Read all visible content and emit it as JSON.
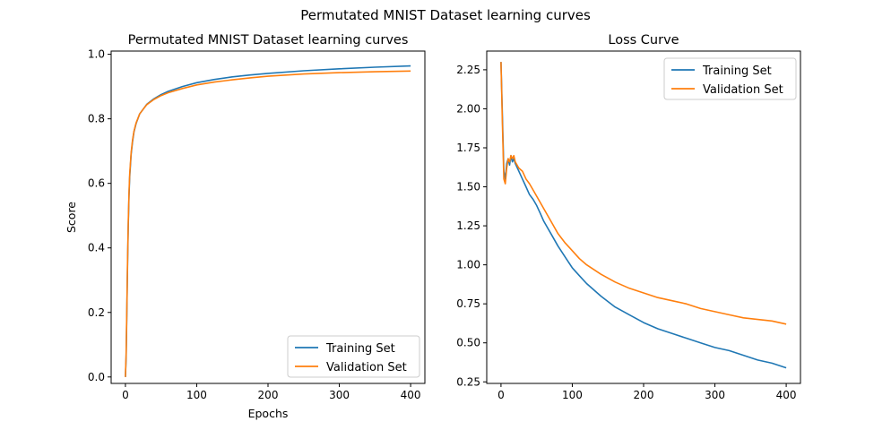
{
  "figure": {
    "suptitle": "Permutated MNIST Dataset learning curves"
  },
  "colors": {
    "training": "#1f77b4",
    "validation": "#ff7f0e",
    "axes": "#000000",
    "background": "#ffffff"
  },
  "chart_data": [
    {
      "type": "line",
      "title": "Permutated MNIST Dataset learning curves",
      "xlabel": "Epochs",
      "ylabel": "Score",
      "xlim": [
        -20,
        420
      ],
      "ylim": [
        -0.02,
        1.01
      ],
      "xticks": [
        0,
        100,
        200,
        300,
        400
      ],
      "xtick_labels": [
        "0",
        "100",
        "200",
        "300",
        "400"
      ],
      "yticks": [
        0.0,
        0.2,
        0.4,
        0.6,
        0.8,
        1.0
      ],
      "ytick_labels": [
        "0.0",
        "0.2",
        "0.4",
        "0.6",
        "0.8",
        "1.0"
      ],
      "grid": false,
      "legend": "lower-right",
      "series": [
        {
          "name": "Training Set",
          "color": "#1f77b4",
          "x": [
            0,
            1,
            2,
            3,
            4,
            5,
            6,
            8,
            10,
            12,
            15,
            20,
            25,
            30,
            40,
            50,
            60,
            80,
            100,
            125,
            150,
            175,
            200,
            250,
            300,
            350,
            400
          ],
          "y": [
            0.0,
            0.06,
            0.2,
            0.35,
            0.47,
            0.56,
            0.62,
            0.69,
            0.73,
            0.76,
            0.785,
            0.815,
            0.83,
            0.845,
            0.862,
            0.875,
            0.885,
            0.9,
            0.912,
            0.922,
            0.93,
            0.936,
            0.941,
            0.949,
            0.955,
            0.96,
            0.964
          ]
        },
        {
          "name": "Validation Set",
          "color": "#ff7f0e",
          "x": [
            0,
            1,
            2,
            3,
            4,
            5,
            6,
            8,
            10,
            12,
            15,
            20,
            25,
            30,
            40,
            50,
            60,
            80,
            100,
            125,
            150,
            175,
            200,
            250,
            300,
            350,
            400
          ],
          "y": [
            0.0,
            0.07,
            0.21,
            0.36,
            0.48,
            0.57,
            0.63,
            0.695,
            0.735,
            0.762,
            0.787,
            0.815,
            0.83,
            0.844,
            0.86,
            0.872,
            0.881,
            0.894,
            0.905,
            0.914,
            0.921,
            0.927,
            0.932,
            0.939,
            0.943,
            0.946,
            0.948
          ]
        }
      ]
    },
    {
      "type": "line",
      "title": "Loss Curve",
      "xlabel": "",
      "ylabel": "",
      "xlim": [
        -20,
        420
      ],
      "ylim": [
        0.24,
        2.37
      ],
      "xticks": [
        0,
        100,
        200,
        300,
        400
      ],
      "xtick_labels": [
        "0",
        "100",
        "200",
        "300",
        "400"
      ],
      "yticks": [
        0.25,
        0.5,
        0.75,
        1.0,
        1.25,
        1.5,
        1.75,
        2.0,
        2.25
      ],
      "ytick_labels": [
        "0.25",
        "0.50",
        "0.75",
        "1.00",
        "1.25",
        "1.50",
        "1.75",
        "2.00",
        "2.25"
      ],
      "grid": false,
      "legend": "upper-right",
      "series": [
        {
          "name": "Training Set",
          "color": "#1f77b4",
          "x": [
            0,
            2,
            4,
            6,
            8,
            10,
            12,
            14,
            16,
            18,
            20,
            25,
            30,
            35,
            40,
            45,
            50,
            55,
            60,
            70,
            80,
            90,
            100,
            110,
            120,
            140,
            160,
            180,
            200,
            220,
            240,
            260,
            280,
            300,
            320,
            340,
            360,
            380,
            400
          ],
          "y": [
            2.3,
            1.95,
            1.6,
            1.55,
            1.65,
            1.68,
            1.64,
            1.7,
            1.66,
            1.68,
            1.65,
            1.6,
            1.55,
            1.5,
            1.45,
            1.42,
            1.38,
            1.33,
            1.28,
            1.2,
            1.12,
            1.05,
            0.98,
            0.93,
            0.88,
            0.8,
            0.73,
            0.68,
            0.63,
            0.59,
            0.56,
            0.53,
            0.5,
            0.47,
            0.45,
            0.42,
            0.39,
            0.37,
            0.34
          ]
        },
        {
          "name": "Validation Set",
          "color": "#ff7f0e",
          "x": [
            0,
            2,
            4,
            6,
            8,
            10,
            12,
            14,
            16,
            18,
            20,
            25,
            30,
            35,
            40,
            45,
            50,
            55,
            60,
            70,
            80,
            90,
            100,
            110,
            120,
            140,
            160,
            180,
            200,
            220,
            240,
            260,
            280,
            300,
            320,
            340,
            360,
            380,
            400
          ],
          "y": [
            2.3,
            1.9,
            1.55,
            1.52,
            1.62,
            1.68,
            1.66,
            1.7,
            1.68,
            1.7,
            1.66,
            1.62,
            1.6,
            1.55,
            1.52,
            1.48,
            1.44,
            1.4,
            1.36,
            1.28,
            1.2,
            1.14,
            1.09,
            1.04,
            1.0,
            0.94,
            0.89,
            0.85,
            0.82,
            0.79,
            0.77,
            0.75,
            0.72,
            0.7,
            0.68,
            0.66,
            0.65,
            0.64,
            0.62
          ]
        }
      ]
    }
  ]
}
